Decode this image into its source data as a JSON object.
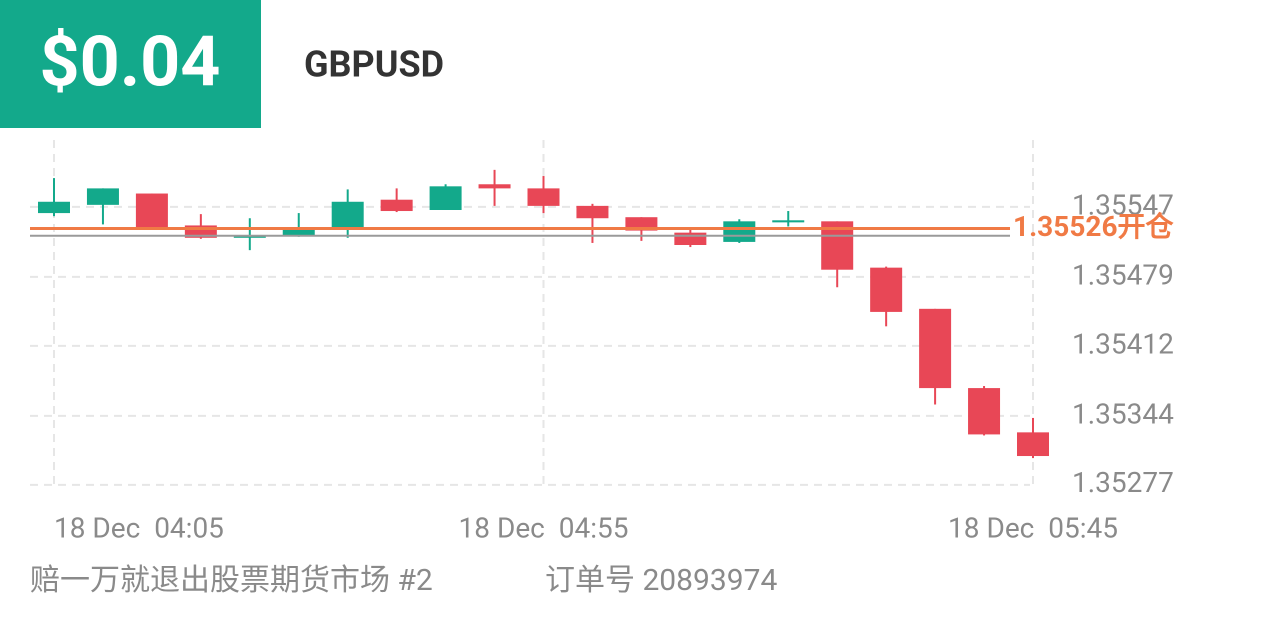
{
  "header": {
    "badge": "$0.04",
    "symbol": "GBPUSD"
  },
  "chart_data": {
    "type": "candlestick",
    "categories": [
      "18 Dec  04:05",
      null,
      null,
      null,
      null,
      null,
      null,
      null,
      null,
      null,
      "18 Dec  04:55",
      null,
      null,
      null,
      null,
      null,
      null,
      null,
      null,
      null,
      "18 Dec  05:45"
    ],
    "open": [
      1.35541,
      1.35549,
      1.3556,
      1.35529,
      1.35517,
      1.35519,
      1.35525,
      1.35554,
      1.35544,
      1.35569,
      1.35565,
      1.35548,
      1.35537,
      1.35522,
      1.35513,
      1.35532,
      1.35533,
      1.35488,
      1.35448,
      1.35371,
      1.35328
    ],
    "high": [
      1.35575,
      1.35565,
      1.3556,
      1.3554,
      1.35536,
      1.35541,
      1.35564,
      1.35565,
      1.35569,
      1.35583,
      1.35577,
      1.3555,
      1.35537,
      1.35526,
      1.35535,
      1.35543,
      1.35533,
      1.35489,
      1.35448,
      1.35373,
      1.35342
    ],
    "low": [
      1.35538,
      1.3553,
      1.35526,
      1.35516,
      1.35505,
      1.35518,
      1.35517,
      1.35542,
      1.35544,
      1.35548,
      1.35541,
      1.35512,
      1.35514,
      1.35508,
      1.35512,
      1.35528,
      1.35469,
      1.35431,
      1.35355,
      1.35325,
      1.35303
    ],
    "close": [
      1.35552,
      1.35565,
      1.35526,
      1.35517,
      1.35519,
      1.35526,
      1.35552,
      1.35543,
      1.35567,
      1.35565,
      1.35548,
      1.35536,
      1.35524,
      1.3551,
      1.35533,
      1.35534,
      1.35486,
      1.35445,
      1.35371,
      1.35326,
      1.35305
    ],
    "up_color": "#13a98b",
    "down_color": "#e84756",
    "ylim": [
      1.35272,
      1.35612
    ],
    "yticks": [
      1.35277,
      1.35344,
      1.35412,
      1.35479,
      1.35547
    ],
    "grid": true,
    "open_line": {
      "value": 1.35526,
      "label": "1.35526开仓",
      "color": "#f07a45"
    },
    "last_price_line": {
      "value": 1.35519,
      "color": "#9a9a9a"
    }
  },
  "footer": {
    "account": "赔一万就退出股票期货市场 #2",
    "order": "订单号 20893974"
  }
}
